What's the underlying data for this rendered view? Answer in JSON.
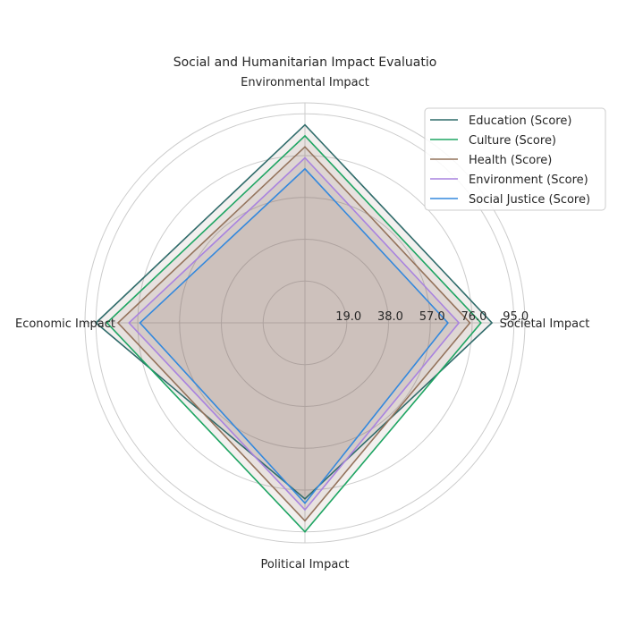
{
  "chart_data": {
    "type": "radar",
    "title": "Social and Humanitarian Impact Evaluatio",
    "axes": [
      "Societal Impact",
      "Environmental Impact",
      "Economic Impact",
      "Political Impact"
    ],
    "radial_ticks": [
      "19.0",
      "38.0",
      "57.0",
      "76.0",
      "95.0"
    ],
    "radial_tick_values": [
      19,
      38,
      57,
      76,
      95
    ],
    "rmax": 100,
    "grid": true,
    "legend_position": "upper-right",
    "fill_color": "#8B6A5F",
    "series": [
      {
        "name": "Education (Score)",
        "color": "#2F6B6A",
        "values": [
          85,
          90,
          95,
          80
        ]
      },
      {
        "name": "Culture (Score)",
        "color": "#1FA563",
        "values": [
          80,
          85,
          90,
          95
        ]
      },
      {
        "name": "Health (Score)",
        "color": "#94735C",
        "values": [
          75,
          80,
          85,
          90
        ]
      },
      {
        "name": "Environment (Score)",
        "color": "#A983DF",
        "values": [
          70,
          75,
          80,
          85
        ]
      },
      {
        "name": "Social Justice (Score)",
        "color": "#3388DD",
        "values": [
          65,
          70,
          75,
          82
        ]
      }
    ]
  }
}
